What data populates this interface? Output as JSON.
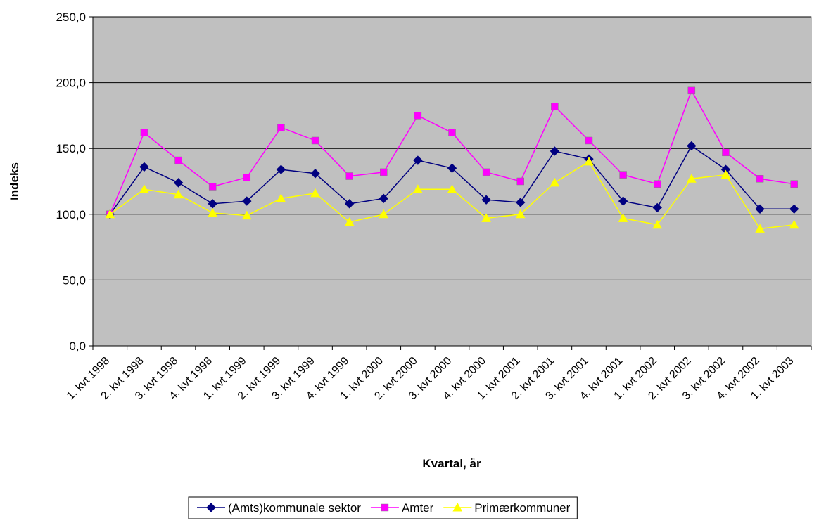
{
  "chart_data": {
    "type": "line",
    "ylabel": "Indeks",
    "xlabel": "Kvartal, år",
    "categories": [
      "1. kvt 1998",
      "2. kvt 1998",
      "3. kvt 1998",
      "4. kvt 1998",
      "1. kvt 1999",
      "2. kvt 1999",
      "3. kvt 1999",
      "4. kvt 1999",
      "1. kvt 2000",
      "2. kvt 2000",
      "3. kvt 2000",
      "4. kvt 2000",
      "1. kvt 2001",
      "2. kvt 2001",
      "3. kvt 2001",
      "4. kvt 2001",
      "1. kvt 2002",
      "2. kvt 2002",
      "3. kvt 2002",
      "4. kvt 2002",
      "1. kvt 2003"
    ],
    "series": [
      {
        "name": "(Amts)kommunale sektor",
        "color": "#000080",
        "marker": "diamond",
        "values": [
          100,
          136,
          124,
          108,
          110,
          134,
          131,
          108,
          112,
          141,
          135,
          111,
          109,
          148,
          142,
          110,
          105,
          152,
          134,
          104,
          104
        ]
      },
      {
        "name": "Amter",
        "color": "#ff00ff",
        "marker": "square",
        "values": [
          100,
          162,
          141,
          121,
          128,
          166,
          156,
          129,
          132,
          175,
          162,
          132,
          125,
          182,
          156,
          130,
          123,
          194,
          147,
          127,
          123
        ]
      },
      {
        "name": "Primærkommuner",
        "color": "#ffff00",
        "marker": "triangle",
        "values": [
          100,
          119,
          115,
          101,
          99,
          112,
          116,
          94,
          100,
          119,
          119,
          97,
          100,
          124,
          140,
          97,
          92,
          127,
          130,
          89,
          92
        ]
      }
    ],
    "ylim": [
      0,
      250
    ],
    "yticks": [
      {
        "value": 0,
        "label": "0,0"
      },
      {
        "value": 50,
        "label": "50,0"
      },
      {
        "value": 100,
        "label": "100,0"
      },
      {
        "value": 150,
        "label": "150,0"
      },
      {
        "value": 200,
        "label": "200,0"
      },
      {
        "value": 250,
        "label": "250,0"
      }
    ],
    "grid": true,
    "plot_background": "#c0c0c0",
    "legend": "bottom"
  }
}
